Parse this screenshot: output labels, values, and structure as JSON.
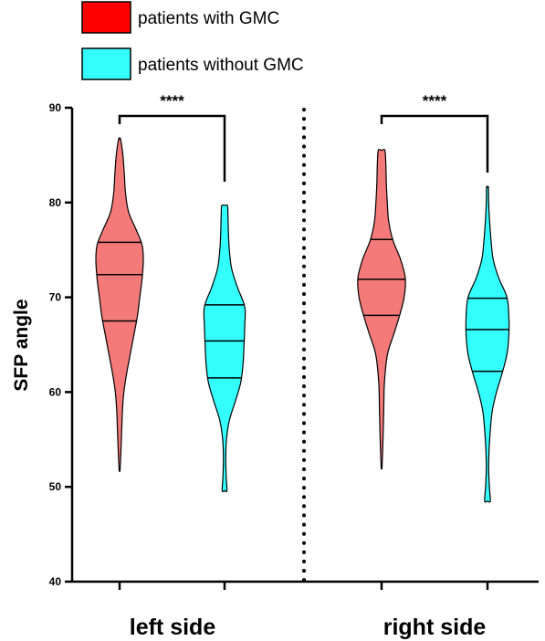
{
  "chart_data": {
    "type": "violin",
    "ylabel": "SFP angle",
    "ylim": [
      40,
      90
    ],
    "yticks": [
      "40",
      "50",
      "60",
      "70",
      "80",
      "90"
    ],
    "groups": [
      "left side",
      "right side"
    ],
    "series": [
      {
        "name": "patients with GMC",
        "color": "#f47a7a",
        "legend_color": "#ff0000"
      },
      {
        "name": "patients without GMC",
        "color": "#33ffff",
        "legend_color": "#33ffff"
      }
    ],
    "violins": [
      {
        "group": "left side",
        "series": "patients with GMC",
        "min": 51.8,
        "max": 86.7,
        "q1": 67.5,
        "median": 72.4,
        "q3": 75.8,
        "shape": [
          [
            51.8,
            0.02
          ],
          [
            54,
            0.06
          ],
          [
            56,
            0.09
          ],
          [
            58,
            0.12
          ],
          [
            60,
            0.18
          ],
          [
            62,
            0.3
          ],
          [
            64,
            0.45
          ],
          [
            66,
            0.6
          ],
          [
            68,
            0.75
          ],
          [
            70,
            0.85
          ],
          [
            72,
            0.95
          ],
          [
            74,
            1.0
          ],
          [
            75.5,
            0.95
          ],
          [
            77,
            0.72
          ],
          [
            79,
            0.38
          ],
          [
            81,
            0.25
          ],
          [
            83,
            0.2
          ],
          [
            85,
            0.14
          ],
          [
            86.7,
            0.04
          ]
        ]
      },
      {
        "group": "left side",
        "series": "patients without GMC",
        "min": 49.6,
        "max": 79.7,
        "q1": 61.5,
        "median": 65.4,
        "q3": 69.2,
        "shape": [
          [
            49.6,
            0.1
          ],
          [
            51,
            0.07
          ],
          [
            53,
            0.05
          ],
          [
            55,
            0.08
          ],
          [
            57,
            0.2
          ],
          [
            59,
            0.45
          ],
          [
            61,
            0.68
          ],
          [
            63,
            0.78
          ],
          [
            65,
            0.82
          ],
          [
            67,
            0.85
          ],
          [
            69,
            0.85
          ],
          [
            71,
            0.55
          ],
          [
            73,
            0.3
          ],
          [
            75,
            0.2
          ],
          [
            77,
            0.16
          ],
          [
            79,
            0.14
          ],
          [
            79.7,
            0.12
          ]
        ]
      },
      {
        "group": "right side",
        "series": "patients with GMC",
        "min": 52.1,
        "max": 85.5,
        "q1": 68.1,
        "median": 71.9,
        "q3": 76.1,
        "shape": [
          [
            52.1,
            0.02
          ],
          [
            55,
            0.06
          ],
          [
            58,
            0.09
          ],
          [
            61,
            0.12
          ],
          [
            64,
            0.25
          ],
          [
            66,
            0.5
          ],
          [
            68,
            0.75
          ],
          [
            70,
            0.95
          ],
          [
            72,
            1.0
          ],
          [
            74,
            0.8
          ],
          [
            76,
            0.48
          ],
          [
            78,
            0.3
          ],
          [
            80,
            0.24
          ],
          [
            82,
            0.2
          ],
          [
            84,
            0.18
          ],
          [
            85.5,
            0.14
          ]
        ]
      },
      {
        "group": "right side",
        "series": "patients without GMC",
        "min": 48.5,
        "max": 81.6,
        "q1": 62.2,
        "median": 66.6,
        "q3": 69.9,
        "shape": [
          [
            48.5,
            0.12
          ],
          [
            50,
            0.08
          ],
          [
            52,
            0.05
          ],
          [
            54,
            0.07
          ],
          [
            56,
            0.12
          ],
          [
            58,
            0.2
          ],
          [
            60,
            0.38
          ],
          [
            62,
            0.62
          ],
          [
            64,
            0.82
          ],
          [
            66,
            0.9
          ],
          [
            68,
            0.9
          ],
          [
            70,
            0.82
          ],
          [
            72,
            0.48
          ],
          [
            74,
            0.24
          ],
          [
            76,
            0.15
          ],
          [
            78,
            0.09
          ],
          [
            80,
            0.05
          ],
          [
            81.6,
            0.04
          ]
        ]
      }
    ],
    "significance": [
      {
        "group": "left side",
        "label": "****"
      },
      {
        "group": "right side",
        "label": "****"
      }
    ],
    "legend_position": "top-left"
  }
}
